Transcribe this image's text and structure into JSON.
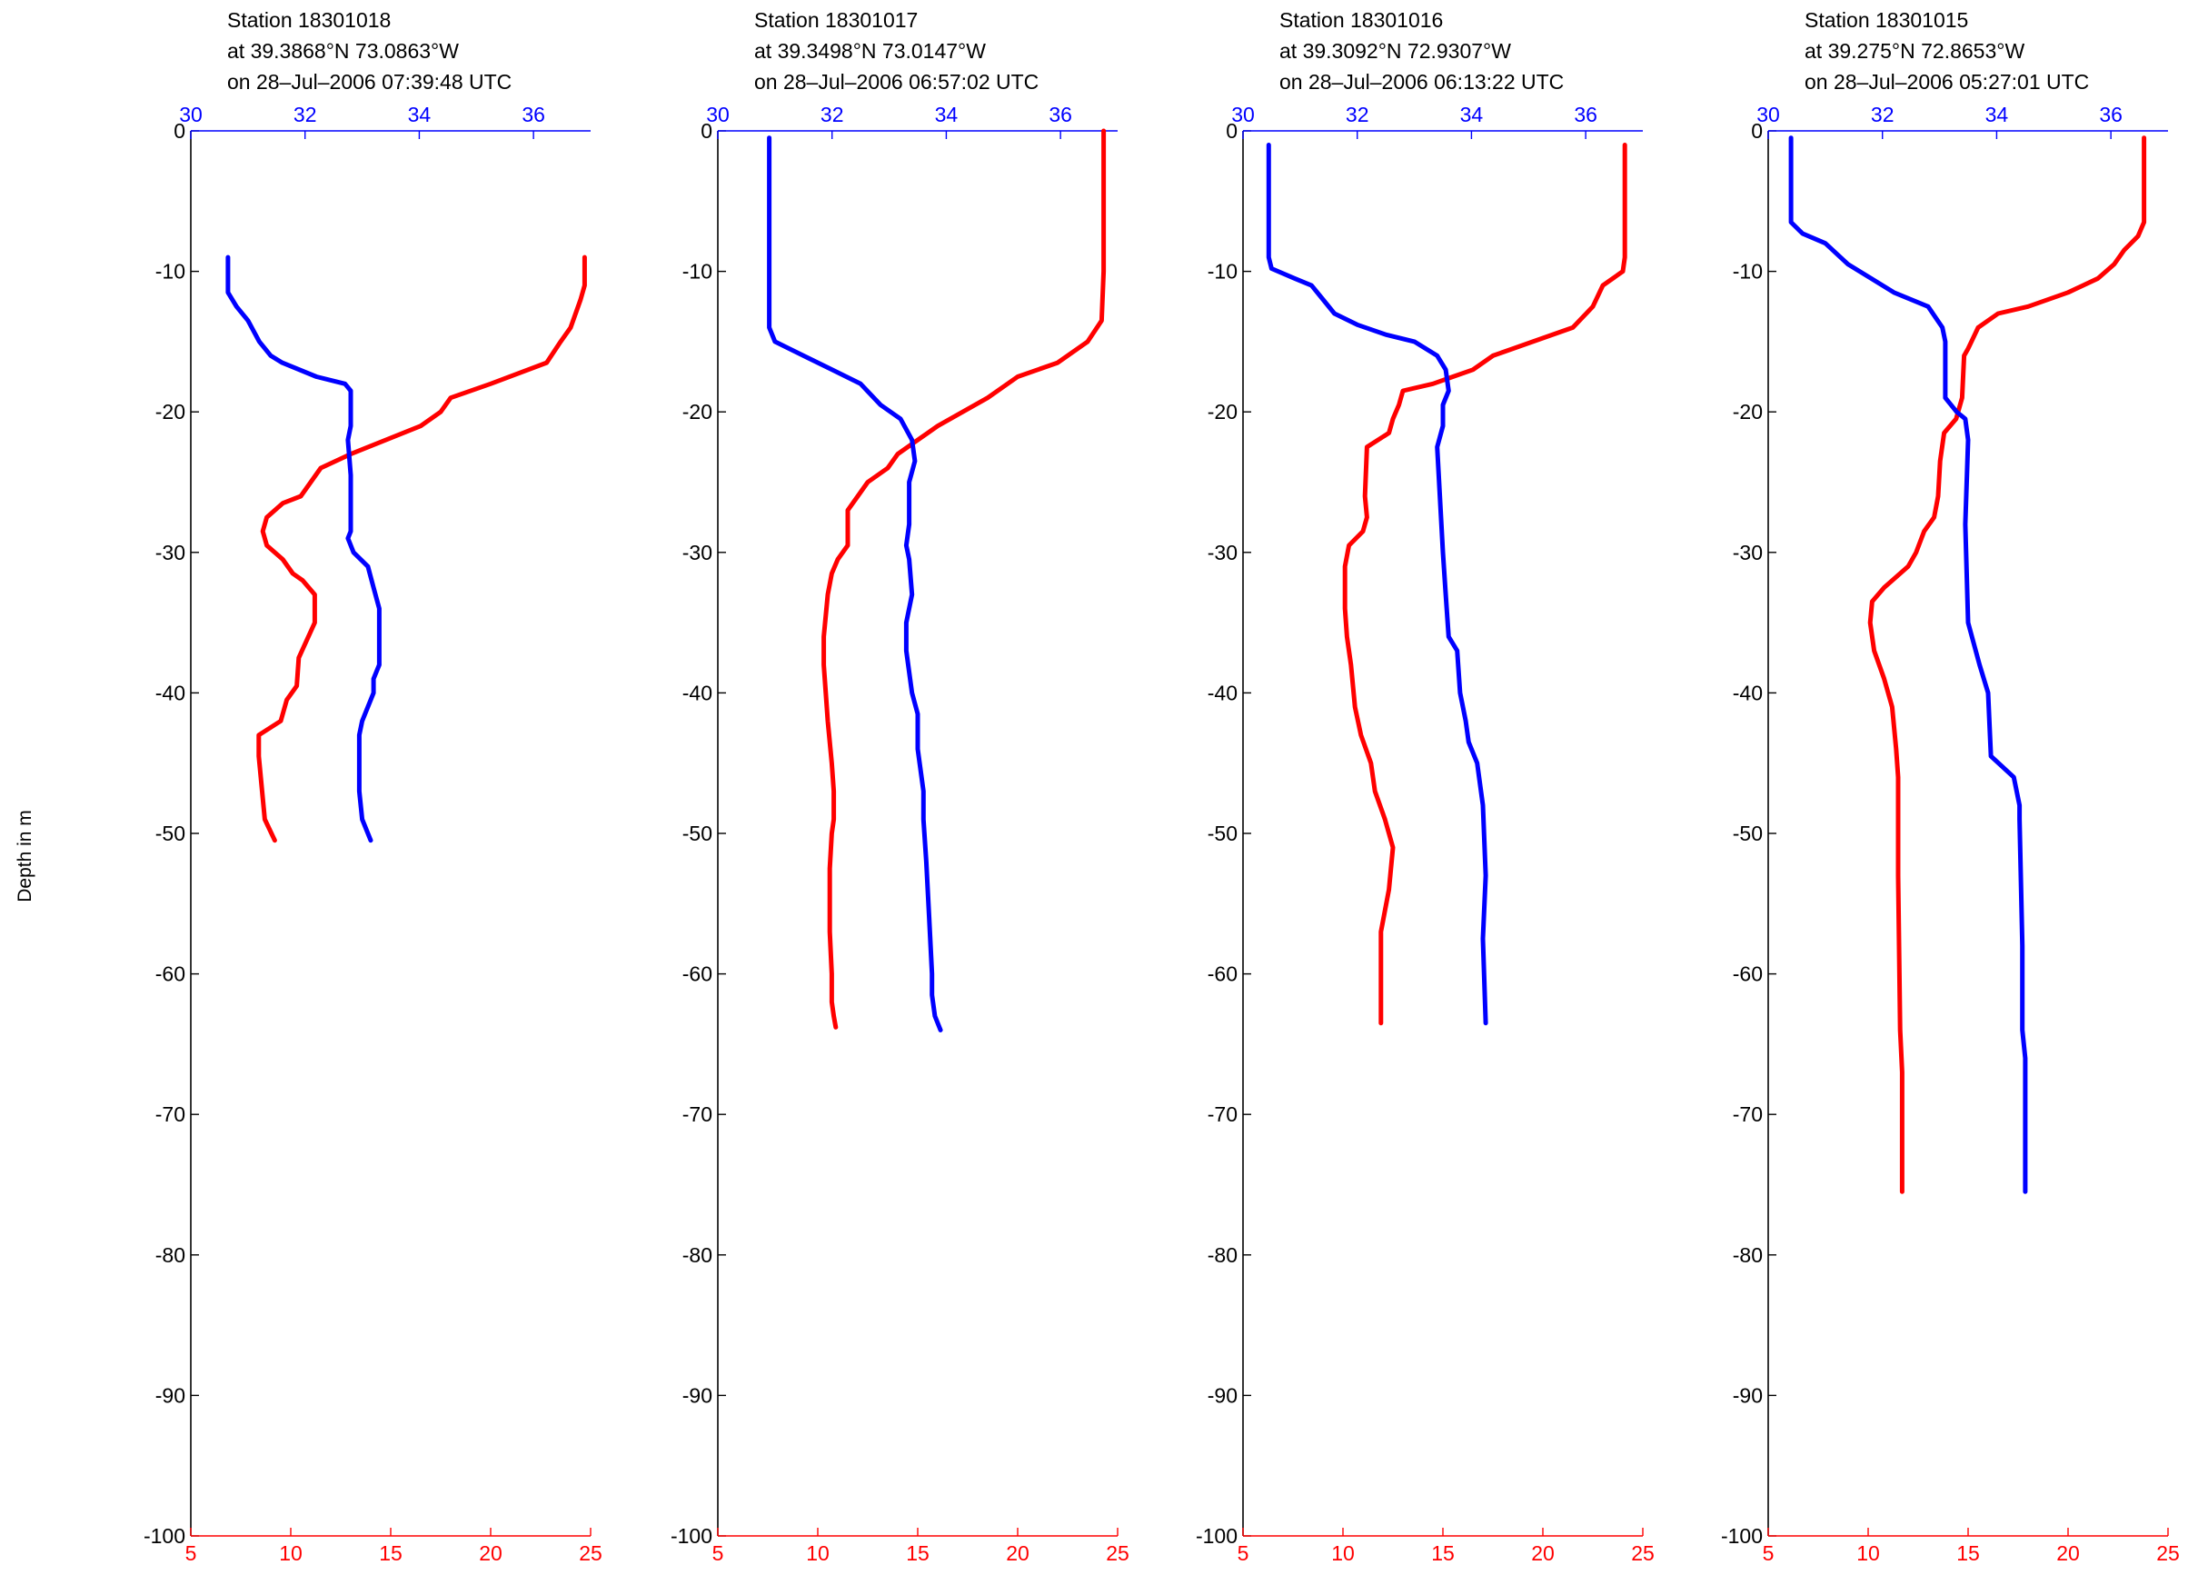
{
  "figure": {
    "ylabel": "Depth in m",
    "colors": {
      "temperature": "#ff0000",
      "salinity": "#0000ff",
      "depth_axis": "#000000"
    }
  },
  "chart_data": [
    {
      "type": "line",
      "title_lines": [
        "Station 18301018",
        "at 39.3868°N 73.0863°W",
        "on 28–Jul–2006 07:39:48 UTC"
      ],
      "ylim": [
        -100,
        0
      ],
      "yticks": [
        0,
        -10,
        -20,
        -30,
        -40,
        -50,
        -60,
        -70,
        -80,
        -90,
        -100
      ],
      "bottom_axis": {
        "color": "#ff0000",
        "lim": [
          5,
          25
        ],
        "ticks": [
          5,
          10,
          15,
          20,
          25
        ]
      },
      "top_axis": {
        "color": "#0000ff",
        "lim": [
          30,
          37
        ],
        "ticks": [
          30,
          32,
          34,
          36
        ]
      },
      "series": [
        {
          "color": "#ff0000",
          "axis": "bottom",
          "x": [
            24.7,
            24.7,
            24.5,
            24,
            23.5,
            22.8,
            20,
            18,
            17.5,
            16.5,
            13,
            11.5,
            11,
            10.5,
            9.6,
            8.8,
            8.6,
            8.8,
            9.6,
            10.1,
            10.6,
            11.2,
            11.2,
            10.4,
            10.3,
            9.8,
            9.5,
            8.4,
            8.4,
            8.5,
            8.7,
            9.2
          ],
          "y": [
            -9,
            -11,
            -12,
            -14,
            -15,
            -16.5,
            -18,
            -19,
            -20,
            -21,
            -23,
            -24,
            -25,
            -26,
            -26.5,
            -27.5,
            -28.5,
            -29.5,
            -30.5,
            -31.5,
            -32,
            -33,
            -35,
            -37.5,
            -39.5,
            -40.5,
            -42,
            -43,
            -44.5,
            -46,
            -49,
            -50.5
          ]
        },
        {
          "color": "#0000ff",
          "axis": "top",
          "x": [
            30.65,
            30.65,
            30.8,
            31.0,
            31.2,
            31.4,
            31.6,
            32.2,
            32.7,
            32.8,
            32.8,
            32.75,
            32.8,
            32.8,
            32.75,
            32.85,
            33.1,
            33.2,
            33.3,
            33.3,
            33.3,
            33.2,
            33.2,
            33.0,
            32.95,
            32.95,
            33.0,
            33.15
          ],
          "y": [
            -9,
            -11.5,
            -12.5,
            -13.5,
            -15,
            -16,
            -16.5,
            -17.5,
            -18,
            -18.5,
            -21,
            -22,
            -24.5,
            -28.5,
            -29,
            -30,
            -31,
            -32.5,
            -34,
            -36,
            -38,
            -39,
            -40,
            -42,
            -43,
            -47,
            -49,
            -50.5
          ]
        }
      ]
    },
    {
      "type": "line",
      "title_lines": [
        "Station 18301017",
        "at 39.3498°N 73.0147°W",
        "on 28–Jul–2006 06:57:02 UTC"
      ],
      "ylim": [
        -100,
        0
      ],
      "yticks": [
        0,
        -10,
        -20,
        -30,
        -40,
        -50,
        -60,
        -70,
        -80,
        -90,
        -100
      ],
      "bottom_axis": {
        "color": "#ff0000",
        "lim": [
          5,
          25
        ],
        "ticks": [
          5,
          10,
          15,
          20,
          25
        ]
      },
      "top_axis": {
        "color": "#0000ff",
        "lim": [
          30,
          37
        ],
        "ticks": [
          30,
          32,
          34,
          36
        ]
      },
      "series": [
        {
          "color": "#ff0000",
          "axis": "bottom",
          "x": [
            24.3,
            24.3,
            24.2,
            23.5,
            22,
            20,
            18.5,
            16,
            14,
            13.5,
            12.5,
            12,
            11.5,
            11.5,
            11.5,
            11,
            10.7,
            10.5,
            10.3,
            10.3,
            10.4,
            10.5,
            10.7,
            10.8,
            10.8,
            10.7,
            10.6,
            10.6,
            10.6,
            10.7,
            10.7,
            10.8,
            10.9
          ],
          "y": [
            0,
            -10,
            -13.5,
            -15,
            -16.5,
            -17.5,
            -19,
            -21,
            -23,
            -24,
            -25,
            -26,
            -27,
            -28,
            -29.5,
            -30.5,
            -31.5,
            -33,
            -36,
            -38,
            -40,
            -42,
            -45,
            -47,
            -49,
            -50,
            -52.5,
            -55,
            -57,
            -60,
            -62,
            -63,
            -63.8
          ]
        },
        {
          "color": "#0000ff",
          "axis": "top",
          "x": [
            30.9,
            30.9,
            30.9,
            31.0,
            31.5,
            32.0,
            32.5,
            32.85,
            33.2,
            33.4,
            33.45,
            33.35,
            33.35,
            33.3,
            33.35,
            33.4,
            33.3,
            33.3,
            33.4,
            33.5,
            33.5,
            33.6,
            33.6,
            33.65,
            33.7,
            33.75,
            33.75,
            33.8,
            33.9
          ],
          "y": [
            -0.5,
            -10,
            -14,
            -15,
            -16,
            -17,
            -18,
            -19.5,
            -20.5,
            -22,
            -23.5,
            -25,
            -28,
            -29.5,
            -30.5,
            -33,
            -35,
            -37,
            -40,
            -41.5,
            -44,
            -47,
            -49,
            -52,
            -56,
            -60,
            -61.5,
            -63,
            -64
          ]
        }
      ]
    },
    {
      "type": "line",
      "title_lines": [
        "Station 18301016",
        "at 39.3092°N 72.9307°W",
        "on 28–Jul–2006 06:13:22 UTC"
      ],
      "ylim": [
        -100,
        0
      ],
      "yticks": [
        0,
        -10,
        -20,
        -30,
        -40,
        -50,
        -60,
        -70,
        -80,
        -90,
        -100
      ],
      "bottom_axis": {
        "color": "#ff0000",
        "lim": [
          5,
          25
        ],
        "ticks": [
          5,
          10,
          15,
          20,
          25
        ]
      },
      "top_axis": {
        "color": "#0000ff",
        "lim": [
          30,
          37
        ],
        "ticks": [
          30,
          32,
          34,
          36
        ]
      },
      "series": [
        {
          "color": "#ff0000",
          "axis": "bottom",
          "x": [
            24.1,
            24.1,
            24.0,
            23.0,
            22.5,
            21.5,
            19.5,
            17.5,
            16.5,
            15.5,
            14.5,
            13.0,
            12.8,
            12.5,
            12.3,
            11.2,
            11.1,
            11.2,
            11.0,
            10.3,
            10.1,
            10.1,
            10.2,
            10.4,
            10.6,
            10.9,
            11.4,
            11.6,
            12.1,
            12.5,
            12.3,
            11.9,
            11.9
          ],
          "y": [
            -1,
            -9,
            -10,
            -11,
            -12.5,
            -14,
            -15,
            -16,
            -17,
            -17.5,
            -18,
            -18.5,
            -19.5,
            -20.5,
            -21.5,
            -22.5,
            -26,
            -27.5,
            -28.5,
            -29.5,
            -31,
            -34,
            -36,
            -38,
            -41,
            -43,
            -45,
            -47,
            -49,
            -51,
            -54,
            -57,
            -63.5
          ]
        },
        {
          "color": "#0000ff",
          "axis": "top",
          "x": [
            30.45,
            30.45,
            30.5,
            30.9,
            31.2,
            31.4,
            31.6,
            32.0,
            32.5,
            33.0,
            33.4,
            33.55,
            33.6,
            33.5,
            33.5,
            33.4,
            33.5,
            33.55,
            33.6,
            33.75,
            33.8,
            33.9,
            33.95,
            34.1,
            34.2,
            34.25,
            34.2,
            34.25
          ],
          "y": [
            -1,
            -9,
            -9.8,
            -10.5,
            -11,
            -12,
            -13,
            -13.8,
            -14.5,
            -15,
            -16,
            -17,
            -18.5,
            -19.5,
            -21,
            -22.5,
            -30,
            -33,
            -36,
            -37,
            -40,
            -42,
            -43.5,
            -45,
            -48,
            -53,
            -57.5,
            -63.5
          ]
        }
      ]
    },
    {
      "type": "line",
      "title_lines": [
        "Station 18301015",
        "at 39.275°N 72.8653°W",
        "on 28–Jul–2006 05:27:01 UTC"
      ],
      "ylim": [
        -100,
        0
      ],
      "yticks": [
        0,
        -10,
        -20,
        -30,
        -40,
        -50,
        -60,
        -70,
        -80,
        -90,
        -100
      ],
      "bottom_axis": {
        "color": "#ff0000",
        "lim": [
          5,
          25
        ],
        "ticks": [
          5,
          10,
          15,
          20,
          25
        ]
      },
      "top_axis": {
        "color": "#0000ff",
        "lim": [
          30,
          37
        ],
        "ticks": [
          30,
          32,
          34,
          36
        ]
      },
      "series": [
        {
          "color": "#ff0000",
          "axis": "bottom",
          "x": [
            23.8,
            23.8,
            23.5,
            22.8,
            22.3,
            21.5,
            20,
            18,
            16.5,
            15.5,
            15.0,
            14.8,
            14.7,
            14.4,
            13.8,
            13.6,
            13.5,
            13.3,
            12.8,
            12.4,
            12.0,
            10.8,
            10.2,
            10.1,
            10.3,
            10.8,
            11.2,
            11.4,
            11.5,
            11.5,
            11.5,
            11.6,
            11.7,
            11.7
          ],
          "y": [
            -0.5,
            -6.5,
            -7.5,
            -8.5,
            -9.5,
            -10.5,
            -11.5,
            -12.5,
            -13,
            -14,
            -15.5,
            -16,
            -19,
            -20.5,
            -21.5,
            -23.5,
            -26,
            -27.5,
            -28.5,
            -30,
            -31,
            -32.5,
            -33.5,
            -35,
            -37,
            -39,
            -41,
            -44,
            -46,
            -47,
            -53,
            -64,
            -67,
            -75.5
          ]
        },
        {
          "color": "#0000ff",
          "axis": "top",
          "x": [
            30.4,
            30.4,
            30.6,
            31.0,
            31.4,
            31.8,
            32.2,
            32.8,
            33.05,
            33.1,
            33.1,
            33.3,
            33.45,
            33.5,
            33.45,
            33.5,
            33.7,
            33.85,
            33.9,
            34.3,
            34.4,
            34.4,
            34.45,
            34.45,
            34.5,
            34.5,
            34.5
          ],
          "y": [
            -0.5,
            -6.5,
            -7.3,
            -8,
            -9.5,
            -10.5,
            -11.5,
            -12.5,
            -14,
            -15,
            -19,
            -20,
            -20.5,
            -22,
            -28,
            -35,
            -38,
            -40,
            -44.5,
            -46,
            -48,
            -49,
            -58,
            -64,
            -66,
            -70,
            -75.5
          ]
        }
      ]
    }
  ]
}
